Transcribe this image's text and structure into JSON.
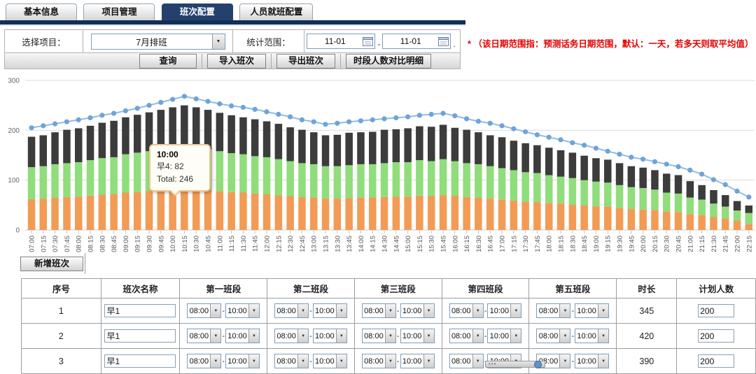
{
  "tabs": [
    {
      "label": "基本信息",
      "active": false
    },
    {
      "label": "项目管理",
      "active": false
    },
    {
      "label": "班次配置",
      "active": true
    },
    {
      "label": "人员就班配置",
      "active": false
    }
  ],
  "filter": {
    "project_label": "选择项目：",
    "project_value": "7月排班",
    "range_label": "统计范围：",
    "date_start": "11-01",
    "date_end": "11-01",
    "separator": "-",
    "trailing_mark": ".",
    "buttons": [
      "查询",
      "导入班次",
      "导出班次",
      "时段人数对比明细"
    ],
    "note": "* （该日期范围指：预测话务日期范围，默认：一天，若多天则取平均值）"
  },
  "chart_data": {
    "type": "bar",
    "stacked": true,
    "grid": true,
    "legend": "none",
    "ylim": [
      0,
      300
    ],
    "yticks": [
      0,
      100,
      200,
      300
    ],
    "x": [
      "07:00",
      "07:15",
      "07:30",
      "07:45",
      "08:00",
      "08:15",
      "08:30",
      "08:45",
      "09:00",
      "09:15",
      "09:30",
      "09:45",
      "10:00",
      "10:15",
      "10:30",
      "10:45",
      "11:00",
      "11:15",
      "11:30",
      "11:45",
      "12:00",
      "12:15",
      "12:30",
      "12:45",
      "13:00",
      "13:15",
      "13:30",
      "13:45",
      "14:00",
      "14:15",
      "14:30",
      "14:45",
      "15:00",
      "15:15",
      "15:30",
      "15:45",
      "16:00",
      "16:15",
      "16:30",
      "16:45",
      "17:00",
      "17:15",
      "17:30",
      "17:45",
      "18:00",
      "18:15",
      "18:30",
      "18:45",
      "19:00",
      "19:15",
      "19:30",
      "19:45",
      "20:00",
      "20:15",
      "20:30",
      "20:45",
      "21:00",
      "21:15",
      "21:30",
      "21:45",
      "22:00",
      "22:15"
    ],
    "series": [
      {
        "name": "shift-bottom",
        "type": "bar",
        "color": "#F29B55",
        "values": [
          62,
          63,
          65,
          66,
          67,
          69,
          71,
          72,
          75,
          76,
          78,
          80,
          82,
          82,
          81,
          80,
          78,
          76,
          75,
          73,
          72,
          70,
          68,
          66,
          65,
          63,
          63,
          64,
          65,
          65,
          66,
          67,
          67,
          69,
          68,
          70,
          68,
          66,
          65,
          63,
          61,
          59,
          57,
          56,
          54,
          53,
          51,
          49,
          48,
          47,
          44,
          42,
          41,
          40,
          37,
          36,
          32,
          30,
          26,
          23,
          19,
          12
        ]
      },
      {
        "name": "shift-middle",
        "type": "bar",
        "color": "#90DD7B",
        "values": [
          64,
          65,
          67,
          68,
          69,
          71,
          73,
          74,
          77,
          79,
          80,
          82,
          83,
          85,
          84,
          82,
          80,
          78,
          77,
          75,
          74,
          72,
          70,
          68,
          67,
          65,
          65,
          66,
          67,
          67,
          68,
          69,
          69,
          71,
          70,
          72,
          70,
          68,
          67,
          65,
          63,
          61,
          59,
          58,
          56,
          54,
          53,
          51,
          49,
          48,
          46,
          44,
          43,
          41,
          38,
          37,
          33,
          31,
          27,
          24,
          20,
          22
        ]
      },
      {
        "name": "shift-top",
        "type": "bar",
        "color": "#3C3C3C",
        "values": [
          61,
          62,
          64,
          67,
          68,
          69,
          71,
          73,
          74,
          76,
          78,
          79,
          81,
          83,
          81,
          79,
          77,
          76,
          74,
          74,
          72,
          71,
          68,
          67,
          64,
          62,
          63,
          65,
          64,
          65,
          67,
          66,
          68,
          68,
          69,
          69,
          67,
          67,
          64,
          62,
          62,
          59,
          58,
          56,
          55,
          53,
          51,
          49,
          47,
          46,
          44,
          42,
          41,
          39,
          38,
          37,
          33,
          29,
          27,
          23,
          19,
          15
        ]
      },
      {
        "name": "forecast-line",
        "type": "line",
        "color": "#8FBCE6",
        "marker_color": "#6FA3D9",
        "values": [
          205,
          209,
          213,
          217,
          221,
          225,
          230,
          234,
          239,
          244,
          250,
          256,
          262,
          268,
          263,
          258,
          253,
          249,
          246,
          242,
          237,
          232,
          227,
          221,
          217,
          212,
          214,
          217,
          219,
          221,
          223,
          225,
          227,
          230,
          232,
          234,
          229,
          223,
          218,
          214,
          209,
          203,
          197,
          191,
          186,
          181,
          175,
          170,
          164,
          158,
          152,
          146,
          142,
          137,
          132,
          127,
          120,
          112,
          101,
          91,
          78,
          66
        ]
      }
    ],
    "tooltip": {
      "title": "10:00",
      "rows": [
        "早4: 82",
        "Total: 246"
      ]
    }
  },
  "add_button": "新增班次",
  "table": {
    "headers": [
      "序号",
      "班次名称",
      "第一班段",
      "第二班段",
      "第三班段",
      "第四班段",
      "第五班段",
      "时长",
      "计划人数"
    ],
    "rows": [
      {
        "no": "1",
        "name": "早1",
        "segments": [
          [
            "08:00",
            "10:00"
          ],
          [
            "08:00",
            "10:00"
          ],
          [
            "08:00",
            "10:00"
          ],
          [
            "08:00",
            "10:00"
          ],
          [
            "08:00",
            "10:00"
          ]
        ],
        "duration": "345",
        "planned": "200"
      },
      {
        "no": "2",
        "name": "早1",
        "segments": [
          [
            "08:00",
            "10:00"
          ],
          [
            "08:00",
            "10:00"
          ],
          [
            "08:00",
            "10:00"
          ],
          [
            "08:00",
            "10:00"
          ],
          [
            "08:00",
            "10:00"
          ]
        ],
        "duration": "420",
        "planned": "200"
      },
      {
        "no": "3",
        "name": "早1",
        "segments": [
          [
            "08:00",
            "10:00"
          ],
          [
            "08:00",
            "10:00"
          ],
          [
            "08:00",
            "10:00"
          ],
          [
            "08:00",
            "10:00"
          ],
          [
            "08:00",
            "10:00"
          ]
        ],
        "duration": "390",
        "planned": "200"
      }
    ]
  },
  "colors": {
    "active_tab": "#24416e",
    "tab_underline": "#132f57",
    "note_red": "#e60000",
    "bar_bottom": "#F29B55",
    "bar_middle": "#90DD7B",
    "bar_top": "#3C3C3C",
    "line": "#8FBCE6",
    "marker": "#6FA3D9"
  }
}
